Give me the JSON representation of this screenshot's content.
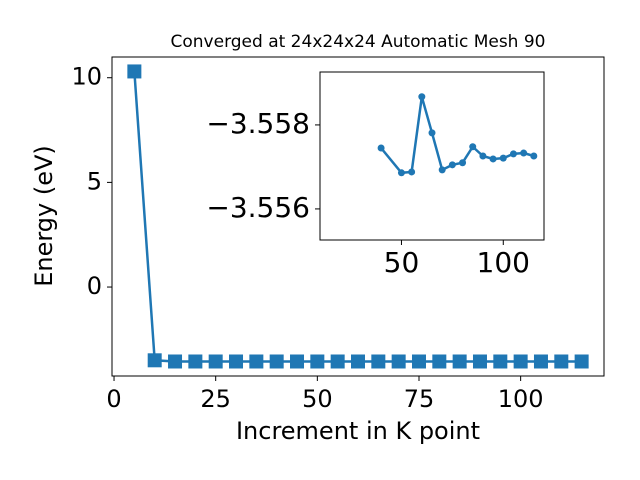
{
  "chart_data": [
    {
      "type": "line",
      "title": "Converged at 24x24x24 Automatic Mesh 90",
      "x_label": "Increment in K point",
      "y_label": "Energy (eV)",
      "x": [
        5,
        10,
        15,
        20,
        25,
        30,
        35,
        40,
        45,
        50,
        55,
        60,
        65,
        70,
        75,
        80,
        85,
        90,
        95,
        100,
        105,
        110,
        115
      ],
      "series": [
        {
          "color": "#1f77b4",
          "values": [
            10.3,
            -3.5,
            -3.557,
            -3.557,
            -3.557,
            -3.557,
            -3.557,
            -3.557,
            -3.557,
            -3.557,
            -3.557,
            -3.557,
            -3.557,
            -3.557,
            -3.557,
            -3.557,
            -3.557,
            -3.557,
            -3.557,
            -3.557,
            -3.557,
            -3.557,
            -3.557
          ]
        }
      ],
      "xlim": [
        -0.5,
        120.5
      ],
      "xticks": [
        0,
        25,
        50,
        75,
        100
      ],
      "ylim": [
        -4.25,
        10.99
      ],
      "yticks": [
        0,
        5,
        10
      ]
    },
    {
      "type": "line",
      "x": [
        40,
        50,
        55,
        60,
        65,
        70,
        75,
        80,
        85,
        90,
        95,
        100,
        105,
        110,
        115
      ],
      "series": [
        {
          "color": "#1f77b4",
          "values": [
            -3.55745,
            -3.55686,
            -3.55688,
            -3.55867,
            -3.55781,
            -3.55693,
            -3.55705,
            -3.5571,
            -3.55748,
            -3.55726,
            -3.55719,
            -3.55721,
            -3.55731,
            -3.55733,
            -3.55726
          ]
        }
      ],
      "xlim": [
        10,
        120
      ],
      "xticks": [
        50,
        100
      ],
      "ylim": [
        -3.55526,
        -3.55926
      ],
      "yticks": [
        {
          "value": -3.558,
          "label": "−3.558"
        },
        {
          "value": -3.556,
          "label": "−3.556"
        }
      ]
    }
  ]
}
